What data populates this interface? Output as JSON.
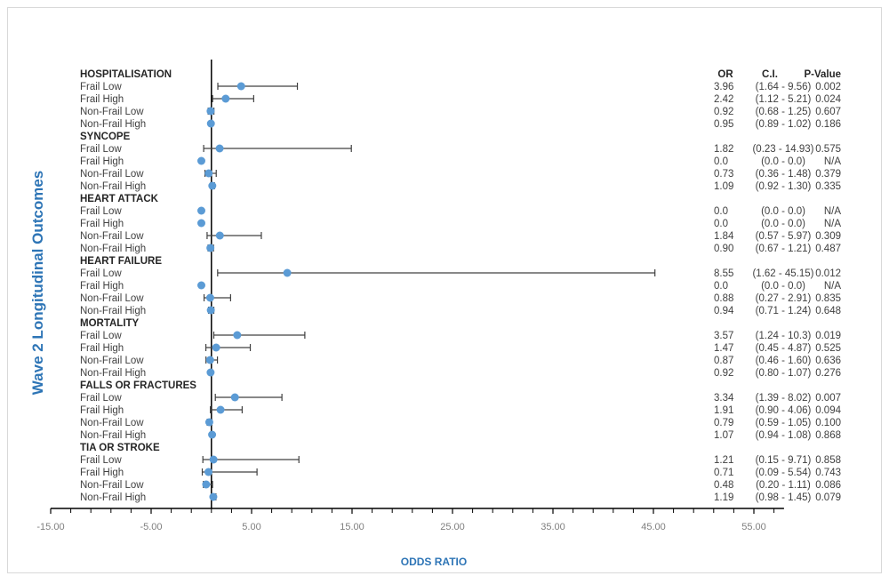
{
  "chart_data": {
    "type": "forest",
    "xlabel": "ODDS RATIO",
    "ylabel": "Wave 2 Longitudinal Outcomes",
    "xlim": [
      -15,
      58
    ],
    "xticks": [
      -15,
      -5,
      5,
      15,
      25,
      35,
      45,
      55
    ],
    "xtick_labels": [
      "-15.00",
      "-5.00",
      "5.00",
      "15.00",
      "25.00",
      "35.00",
      "45.00",
      "55.00"
    ],
    "reference_line": 1,
    "grid": false,
    "marker_color": "#5b9bd5",
    "axis_title_color": "#2e75b6",
    "table_headers": {
      "or": "OR",
      "ci": "C.I.",
      "p": "P-Value"
    },
    "groups": [
      {
        "name": "HOSPITALISATION",
        "rows": [
          {
            "label": "Frail Low",
            "or": 3.96,
            "lo": 1.64,
            "hi": 9.56,
            "or_text": "3.96",
            "ci_text": "(1.64 - 9.56)",
            "p_text": "0.002"
          },
          {
            "label": "Frail High",
            "or": 2.42,
            "lo": 1.12,
            "hi": 5.21,
            "or_text": "2.42",
            "ci_text": "(1.12 - 5.21)",
            "p_text": "0.024"
          },
          {
            "label": "Non-Frail Low",
            "or": 0.92,
            "lo": 0.68,
            "hi": 1.25,
            "or_text": "0.92",
            "ci_text": "(0.68 - 1.25)",
            "p_text": "0.607"
          },
          {
            "label": "Non-Frail High",
            "or": 0.95,
            "lo": 0.89,
            "hi": 1.02,
            "or_text": "0.95",
            "ci_text": "(0.89 - 1.02)",
            "p_text": "0.186"
          }
        ]
      },
      {
        "name": "SYNCOPE",
        "rows": [
          {
            "label": "Frail Low",
            "or": 1.82,
            "lo": 0.23,
            "hi": 14.93,
            "or_text": "1.82",
            "ci_text": "(0.23 - 14.93)",
            "p_text": "0.575"
          },
          {
            "label": "Frail High",
            "or": 0.0,
            "lo": 0.0,
            "hi": 0.0,
            "or_text": "0.0",
            "ci_text": "(0.0 - 0.0)",
            "p_text": "N/A"
          },
          {
            "label": "Non-Frail Low",
            "or": 0.73,
            "lo": 0.36,
            "hi": 1.48,
            "or_text": "0.73",
            "ci_text": "(0.36 - 1.48)",
            "p_text": "0.379"
          },
          {
            "label": "Non-Frail High",
            "or": 1.09,
            "lo": 0.92,
            "hi": 1.3,
            "or_text": "1.09",
            "ci_text": "(0.92 - 1.30)",
            "p_text": "0.335"
          }
        ]
      },
      {
        "name": "HEART ATTACK",
        "rows": [
          {
            "label": "Frail Low",
            "or": 0.0,
            "lo": 0.0,
            "hi": 0.0,
            "or_text": "0.0",
            "ci_text": "(0.0 - 0.0)",
            "p_text": "N/A"
          },
          {
            "label": "Frail High",
            "or": 0.0,
            "lo": 0.0,
            "hi": 0.0,
            "or_text": "0.0",
            "ci_text": "(0.0 - 0.0)",
            "p_text": "N/A"
          },
          {
            "label": "Non-Frail Low",
            "or": 1.84,
            "lo": 0.57,
            "hi": 5.97,
            "or_text": "1.84",
            "ci_text": "(0.57 - 5.97)",
            "p_text": "0.309"
          },
          {
            "label": "Non-Frail High",
            "or": 0.9,
            "lo": 0.67,
            "hi": 1.21,
            "or_text": "0.90",
            "ci_text": "(0.67 - 1.21)",
            "p_text": "0.487"
          }
        ]
      },
      {
        "name": "HEART FAILURE",
        "rows": [
          {
            "label": "Frail Low",
            "or": 8.55,
            "lo": 1.62,
            "hi": 45.15,
            "or_text": "8.55",
            "ci_text": "(1.62 - 45.15)",
            "p_text": "0.012"
          },
          {
            "label": "Frail High",
            "or": 0.0,
            "lo": 0.0,
            "hi": 0.0,
            "or_text": "0.0",
            "ci_text": "(0.0 - 0.0)",
            "p_text": "N/A"
          },
          {
            "label": "Non-Frail Low",
            "or": 0.88,
            "lo": 0.27,
            "hi": 2.91,
            "or_text": "0.88",
            "ci_text": "(0.27 - 2.91)",
            "p_text": "0.835"
          },
          {
            "label": "Non-Frail High",
            "or": 0.94,
            "lo": 0.71,
            "hi": 1.24,
            "or_text": "0.94",
            "ci_text": "(0.71 - 1.24)",
            "p_text": "0.648"
          }
        ]
      },
      {
        "name": "MORTALITY",
        "rows": [
          {
            "label": "Frail Low",
            "or": 3.57,
            "lo": 1.24,
            "hi": 10.3,
            "or_text": "3.57",
            "ci_text": "(1.24 - 10.3)",
            "p_text": "0.019"
          },
          {
            "label": "Frail High",
            "or": 1.47,
            "lo": 0.45,
            "hi": 4.87,
            "or_text": "1.47",
            "ci_text": "(0.45 - 4.87)",
            "p_text": "0.525"
          },
          {
            "label": "Non-Frail Low",
            "or": 0.87,
            "lo": 0.46,
            "hi": 1.6,
            "or_text": "0.87",
            "ci_text": "(0.46 - 1.60)",
            "p_text": "0.636"
          },
          {
            "label": "Non-Frail High",
            "or": 0.92,
            "lo": 0.8,
            "hi": 1.07,
            "or_text": "0.92",
            "ci_text": "(0.80 - 1.07)",
            "p_text": "0.276"
          }
        ]
      },
      {
        "name": "FALLS OR FRACTURES",
        "rows": [
          {
            "label": "Frail Low",
            "or": 3.34,
            "lo": 1.39,
            "hi": 8.02,
            "or_text": "3.34",
            "ci_text": "(1.39 - 8.02)",
            "p_text": "0.007"
          },
          {
            "label": "Frail High",
            "or": 1.91,
            "lo": 0.9,
            "hi": 4.06,
            "or_text": "1.91",
            "ci_text": "(0.90 - 4.06)",
            "p_text": "0.094"
          },
          {
            "label": "Non-Frail Low",
            "or": 0.79,
            "lo": 0.59,
            "hi": 1.05,
            "or_text": "0.79",
            "ci_text": "(0.59 - 1.05)",
            "p_text": "0.100"
          },
          {
            "label": "Non-Frail High",
            "or": 1.07,
            "lo": 0.94,
            "hi": 1.08,
            "or_text": "1.07",
            "ci_text": "(0.94 - 1.08)",
            "p_text": "0.868"
          }
        ]
      },
      {
        "name": "TIA OR STROKE",
        "rows": [
          {
            "label": "Frail Low",
            "or": 1.21,
            "lo": 0.15,
            "hi": 9.71,
            "or_text": "1.21",
            "ci_text": "(0.15 - 9.71)",
            "p_text": "0.858"
          },
          {
            "label": "Frail High",
            "or": 0.71,
            "lo": 0.09,
            "hi": 5.54,
            "or_text": "0.71",
            "ci_text": "(0.09 - 5.54)",
            "p_text": "0.743"
          },
          {
            "label": "Non-Frail Low",
            "or": 0.48,
            "lo": 0.2,
            "hi": 1.11,
            "or_text": "0.48",
            "ci_text": "(0.20 - 1.11)",
            "p_text": "0.086"
          },
          {
            "label": "Non-Frail High",
            "or": 1.19,
            "lo": 0.98,
            "hi": 1.45,
            "or_text": "1.19",
            "ci_text": "(0.98 - 1.45)",
            "p_text": "0.079"
          }
        ]
      }
    ]
  }
}
